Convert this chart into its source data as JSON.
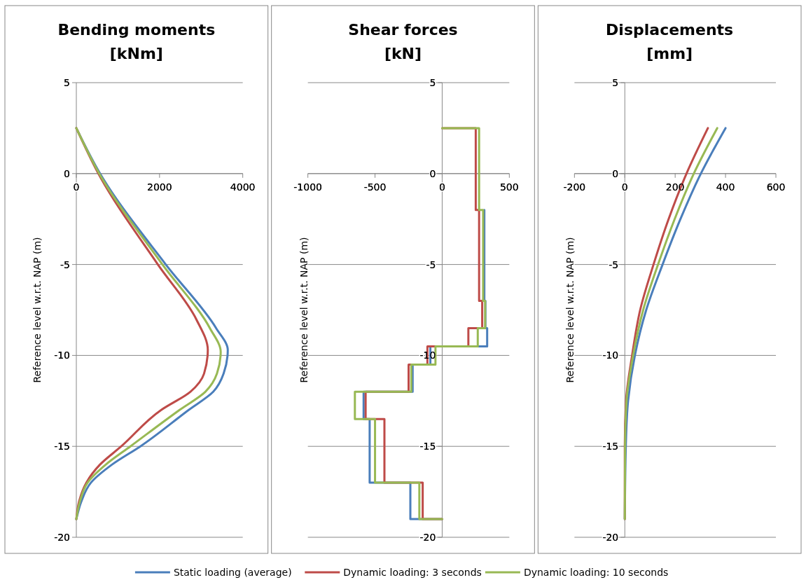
{
  "chart_data": [
    {
      "type": "line",
      "title": "Bending moments",
      "subtitle": "[kNm]",
      "ylabel": "Reference level w.r.t. NAP (m)",
      "xlim": [
        0,
        4000
      ],
      "xticks": [
        0,
        2000,
        4000
      ],
      "ylim": [
        -20,
        5
      ],
      "yticks": [
        -20,
        -15,
        -10,
        -5,
        0,
        5
      ],
      "grid": "y",
      "legend": "bottom",
      "series": [
        {
          "name": "Static loading (average)",
          "color": "#4a7ebb",
          "x": [
            0,
            570,
            2150,
            3360,
            3640,
            3540,
            3290,
            2700,
            1540,
            860,
            350,
            125,
            0
          ],
          "values": [
            2.5,
            0,
            -5,
            -8.5,
            -9.7,
            -11,
            -12,
            -13,
            -15,
            -16,
            -17,
            -18,
            -19
          ]
        },
        {
          "name": "Dynamic loading: 3 seconds",
          "color": "#be4b48",
          "x": [
            0,
            530,
            1960,
            2880,
            3160,
            3070,
            2740,
            2040,
            1080,
            570,
            240,
            70,
            0
          ],
          "values": [
            2.5,
            0,
            -5,
            -8,
            -9.7,
            -11,
            -12,
            -13,
            -15,
            -16,
            -17,
            -18,
            -19
          ]
        },
        {
          "name": "Dynamic loading: 10 seconds",
          "color": "#98b954",
          "x": [
            0,
            550,
            2070,
            3210,
            3470,
            3380,
            3100,
            2480,
            1300,
            710,
            270,
            90,
            0
          ],
          "values": [
            2.5,
            0,
            -5,
            -8.5,
            -9.8,
            -11,
            -12,
            -13,
            -15,
            -16,
            -17,
            -18,
            -19
          ]
        }
      ]
    },
    {
      "type": "line",
      "title": "Shear forces",
      "subtitle": "[kN]",
      "ylabel": "Reference level w.r.t. NAP (m)",
      "xlim": [
        -1000,
        500
      ],
      "xticks": [
        -1000,
        -500,
        0,
        500
      ],
      "ylim": [
        -20,
        5
      ],
      "yticks": [
        -20,
        -15,
        -10,
        -5,
        0,
        5
      ],
      "grid": "y",
      "series": [
        {
          "color": "#4a7ebb",
          "x": [
            null,
            null,
            null,
            314,
            314,
            322,
            322,
            335,
            335,
            -88,
            -88,
            -220,
            -220,
            -585,
            -585,
            -540,
            -540,
            -237,
            -237,
            0
          ],
          "values": [
            null,
            null,
            null,
            -2,
            -7,
            -7,
            -8.5,
            -8.5,
            -9.5,
            -9.5,
            -10.5,
            -10.5,
            -12,
            -12,
            -13.5,
            -13.5,
            -17,
            -17,
            -19,
            -19
          ]
        },
        {
          "color": "#be4b48",
          "x": [
            0,
            250,
            250,
            275,
            275,
            298,
            298,
            195,
            195,
            -110,
            -110,
            -250,
            -250,
            -570,
            -570,
            -430,
            -430,
            -145,
            -145,
            0
          ],
          "values": [
            2.5,
            2.5,
            -2,
            -2,
            -7,
            -7,
            -8.5,
            -8.5,
            -9.5,
            -9.5,
            -10.5,
            -10.5,
            -12,
            -12,
            -13.5,
            -13.5,
            -17,
            -17,
            -19,
            -19
          ]
        },
        {
          "color": "#98b954",
          "x": [
            0,
            275,
            275,
            305,
            305,
            320,
            320,
            265,
            265,
            -50,
            -50,
            -230,
            -230,
            -650,
            -650,
            -500,
            -500,
            -170,
            -170,
            0
          ],
          "values": [
            2.5,
            2.5,
            -2,
            -2,
            -7,
            -7,
            -8.5,
            -8.5,
            -9.5,
            -9.5,
            -10.5,
            -10.5,
            -12,
            -12,
            -13.5,
            -13.5,
            -17,
            -17,
            -19,
            -19
          ]
        }
      ]
    },
    {
      "type": "line",
      "title": "Displacements",
      "subtitle": "[mm]",
      "ylabel": "Reference level w.r.t. NAP (m)",
      "xlim": [
        -200,
        600
      ],
      "xticks": [
        -200,
        0,
        200,
        400,
        600
      ],
      "ylim": [
        -20,
        5
      ],
      "yticks": [
        -20,
        -15,
        -10,
        -5,
        0,
        5
      ],
      "grid": "y",
      "series": [
        {
          "color": "#4a7ebb",
          "x": [
            400,
            302,
            221,
            150,
            85,
            40,
            13,
            4,
            null,
            0
          ],
          "values": [
            2.5,
            0,
            -2.5,
            -5,
            -7.5,
            -10,
            -12.5,
            -15,
            null,
            -19
          ]
        },
        {
          "color": "#be4b48",
          "x": [
            330,
            245,
            174,
            114,
            61,
            29,
            5,
            0,
            0
          ],
          "values": [
            2.5,
            0,
            -2.5,
            -5,
            -7.5,
            -10,
            -12.5,
            -15,
            -19
          ]
        },
        {
          "color": "#98b954",
          "x": [
            367,
            274,
            198,
            132,
            73,
            33,
            7,
            1,
            0
          ],
          "values": [
            2.5,
            0,
            -2.5,
            -5,
            -7.5,
            -10,
            -12.5,
            -15,
            -19
          ]
        }
      ]
    }
  ]
}
